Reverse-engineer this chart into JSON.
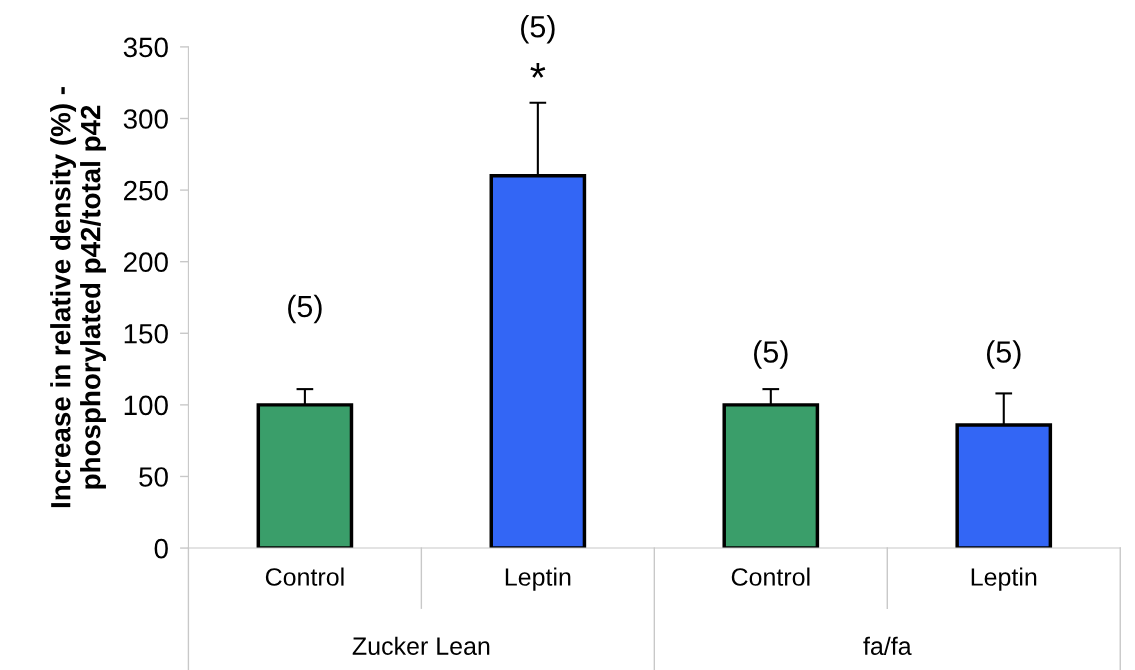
{
  "chart_data": {
    "type": "bar",
    "ylabel": "Increase in relative density (%) -\nphosphorylated p42/total p42",
    "categories": [
      "Control",
      "Leptin",
      "Control",
      "Leptin"
    ],
    "values": [
      100,
      260,
      100,
      86
    ],
    "colors": [
      "#3a9e6a",
      "#3366f5",
      "#3a9e6a",
      "#3366f5"
    ],
    "errors": [
      11,
      51,
      11,
      22
    ],
    "ylim": [
      0,
      350
    ],
    "yticks": [
      0,
      50,
      100,
      150,
      200,
      250,
      300,
      350
    ],
    "grid": false,
    "annotations": [
      "(5)",
      "(5)",
      "*",
      "(5)",
      "(5)",
      "Zucker Lean",
      "fa/fa"
    ]
  }
}
